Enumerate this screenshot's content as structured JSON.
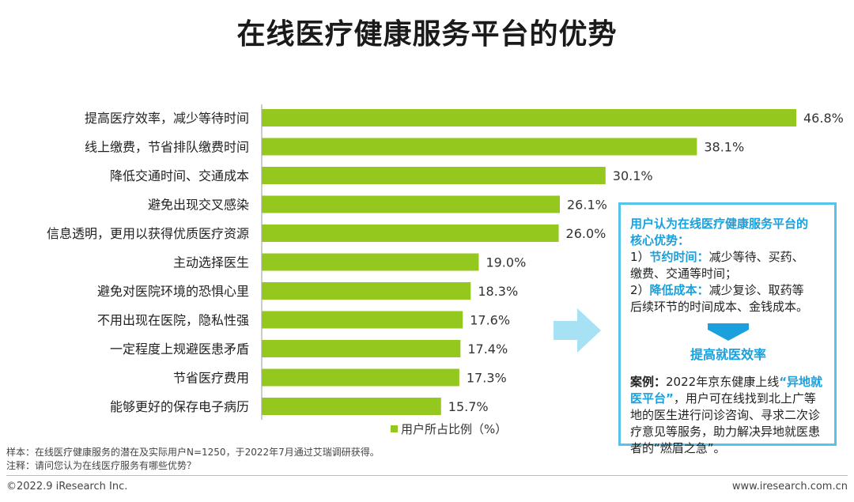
{
  "title": "在线医疗健康服务平台的优势",
  "colors": {
    "bar": "#94c81f",
    "accent": "#1aa0dc",
    "border": "#55c4e8",
    "arrow": "#a6e1f4"
  },
  "chart_data": {
    "type": "bar",
    "orientation": "horizontal",
    "title": "在线医疗健康服务平台的优势",
    "categories": [
      "提高医疗效率，减少等待时间",
      "线上缴费，节省排队缴费时间",
      "降低交通时间、交通成本",
      "避免出现交叉感染",
      "信息透明，更用以获得优质医疗资源",
      "主动选择医生",
      "避免对医院环境的恐惧心里",
      "不用出现在医院，隐私性强",
      "一定程度上规避医患矛盾",
      "节省医疗费用",
      "能够更好的保存电子病历"
    ],
    "values": [
      46.8,
      38.1,
      30.1,
      26.1,
      26.0,
      19.0,
      18.3,
      17.6,
      17.4,
      17.3,
      15.7
    ],
    "value_labels": [
      "46.8%",
      "38.1%",
      "30.1%",
      "26.1%",
      "26.0%",
      "19.0%",
      "18.3%",
      "17.6%",
      "17.4%",
      "17.3%",
      "15.7%"
    ],
    "series_name": "用户所占比例（%）",
    "xlim": [
      0,
      50
    ],
    "legend_position": "bottom"
  },
  "infobox": {
    "title_line1": "用户认为在线医疗健康服务平台的",
    "title_line2": "核心优势：",
    "item1_prefix": "1）",
    "item1_key": "节约时间：",
    "item1_text": "减少等待、买药、",
    "item1_text2": "缴费、交通等时间；",
    "item2_prefix": "2）",
    "item2_key": "降低成本：",
    "item2_text": "减少复诊、取药等",
    "item2_text2": "后续环节的时间成本、金钱成本。",
    "result": "提高就医效率",
    "case_label": "案例：",
    "case_text1": "2022年京东健康上线",
    "case_highlight": "“异地就医平台”",
    "case_text2": "，用户可在线找到北上广等地的医生进行问诊咨询、寻求二次诊疗意见等服务，助力解决异地就医患者的“燃眉之急”。"
  },
  "notes": {
    "sample": "样本：在线医疗健康服务的潜在及实际用户N=1250，于2022年7月通过艾瑞调研获得。",
    "note": "注释：请问您认为在线医疗服务有哪些优势？"
  },
  "footer": {
    "copyright": "©2022.9 iResearch Inc.",
    "website": "www.iresearch.com.cn"
  }
}
